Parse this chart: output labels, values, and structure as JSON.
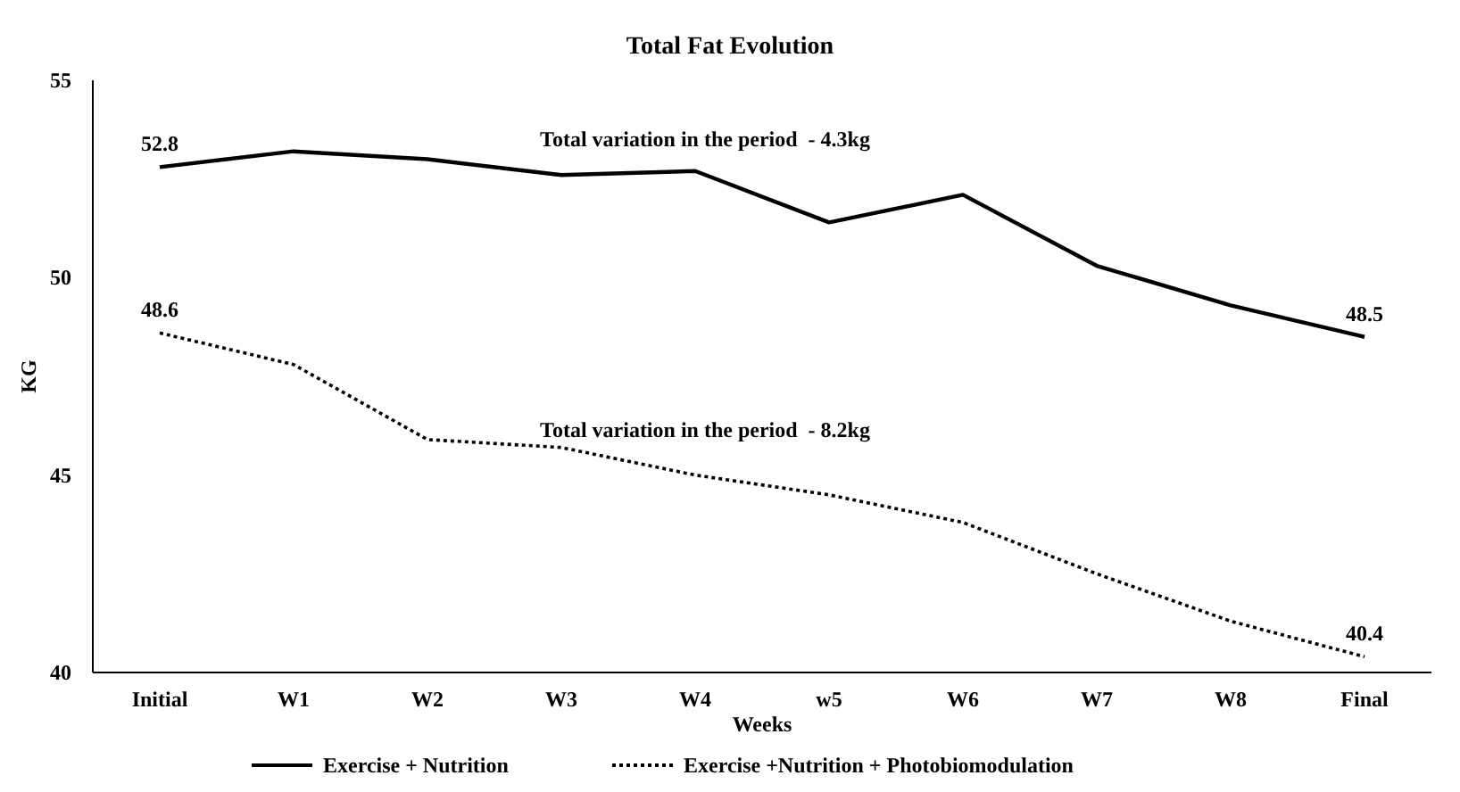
{
  "chart_data": {
    "type": "line",
    "title": "Total Fat Evolution",
    "xlabel": "Weeks",
    "ylabel": "KG",
    "categories": [
      "Initial",
      "W1",
      "W2",
      "W3",
      "W4",
      "w5",
      "W6",
      "W7",
      "W8",
      "Final"
    ],
    "series": [
      {
        "name": "Exercise + Nutrition",
        "color": "#000000",
        "line_style": "solid",
        "values": [
          52.8,
          53.2,
          53.0,
          52.6,
          52.7,
          51.4,
          52.1,
          50.3,
          49.3,
          48.5
        ],
        "value_labels": [
          "52.8",
          null,
          null,
          null,
          null,
          null,
          null,
          null,
          null,
          "48.5"
        ]
      },
      {
        "name": "Exercise +Nutrition + Photobiomodulation",
        "color": "#000000",
        "line_style": "dotted",
        "values": [
          48.6,
          47.8,
          45.9,
          45.7,
          45.0,
          44.5,
          43.8,
          42.5,
          41.3,
          40.4
        ],
        "value_labels": [
          "48.6",
          null,
          null,
          null,
          null,
          null,
          null,
          null,
          null,
          "40.4"
        ]
      }
    ],
    "ylim": [
      40,
      55
    ],
    "yticks": [
      40,
      45,
      50,
      55
    ],
    "grid": false,
    "legend": "bottom",
    "marker": "none",
    "annotations": [
      "Total variation in the period  - 4.3kg",
      "Total variation in the period  - 8.2kg"
    ]
  }
}
